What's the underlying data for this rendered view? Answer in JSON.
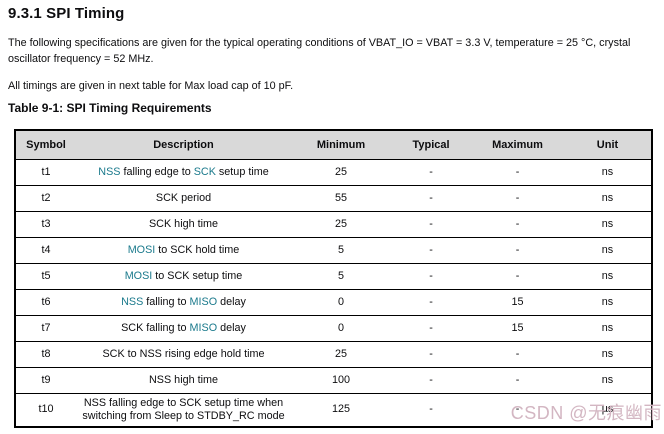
{
  "page": {
    "heading": "9.3.1 SPI Timing",
    "paragraph1": "The following specifications are given for the typical operating conditions of VBAT_IO = VBAT = 3.3 V, temperature = 25 °C, crystal oscillator frequency = 52 MHz.",
    "paragraph2": "All timings are given in next table for Max load cap of 10 pF.",
    "table_caption": "Table 9-1: SPI Timing Requirements",
    "watermark": "CSDN @无痕幽雨"
  },
  "colors": {
    "text": "#0d0d0f",
    "link_teal": "#1b7a8c",
    "header_bg": "#d9d9d9",
    "watermark_pink": "#d3b6c2",
    "border": "#000000"
  },
  "table": {
    "headers": [
      "Symbol",
      "Description",
      "Minimum",
      "Typical",
      "Maximum",
      "Unit"
    ],
    "rows": [
      {
        "symbol": "t1",
        "description": [
          {
            "text": "NSS",
            "link": true
          },
          {
            "text": " falling edge to ",
            "link": false
          },
          {
            "text": "SCK",
            "link": true
          },
          {
            "text": " setup time",
            "link": false
          }
        ],
        "minimum": "25",
        "typical": "-",
        "maximum": "-",
        "unit": "ns"
      },
      {
        "symbol": "t2",
        "description": [
          {
            "text": "SCK period",
            "link": false
          }
        ],
        "minimum": "55",
        "typical": "-",
        "maximum": "-",
        "unit": "ns"
      },
      {
        "symbol": "t3",
        "description": [
          {
            "text": "SCK high time",
            "link": false
          }
        ],
        "minimum": "25",
        "typical": "-",
        "maximum": "-",
        "unit": "ns"
      },
      {
        "symbol": "t4",
        "description": [
          {
            "text": "MOSI",
            "link": true
          },
          {
            "text": " to SCK hold time",
            "link": false
          }
        ],
        "minimum": "5",
        "typical": "-",
        "maximum": "-",
        "unit": "ns"
      },
      {
        "symbol": "t5",
        "description": [
          {
            "text": "MOSI",
            "link": true
          },
          {
            "text": " to SCK setup time",
            "link": false
          }
        ],
        "minimum": "5",
        "typical": "-",
        "maximum": "-",
        "unit": "ns"
      },
      {
        "symbol": "t6",
        "description": [
          {
            "text": "NSS",
            "link": true
          },
          {
            "text": " falling to ",
            "link": false
          },
          {
            "text": "MISO",
            "link": true
          },
          {
            "text": " delay",
            "link": false
          }
        ],
        "minimum": "0",
        "typical": "-",
        "maximum": "15",
        "unit": "ns"
      },
      {
        "symbol": "t7",
        "description": [
          {
            "text": "SCK falling to ",
            "link": false
          },
          {
            "text": "MISO",
            "link": true
          },
          {
            "text": " delay",
            "link": false
          }
        ],
        "minimum": "0",
        "typical": "-",
        "maximum": "15",
        "unit": "ns"
      },
      {
        "symbol": "t8",
        "description": [
          {
            "text": "SCK to NSS rising edge hold time",
            "link": false
          }
        ],
        "minimum": "25",
        "typical": "-",
        "maximum": "-",
        "unit": "ns"
      },
      {
        "symbol": "t9",
        "description": [
          {
            "text": "NSS high time",
            "link": false
          }
        ],
        "minimum": "100",
        "typical": "-",
        "maximum": "-",
        "unit": "ns"
      },
      {
        "symbol": "t10",
        "description": [
          {
            "text": "NSS falling edge to SCK setup time when switching from Sleep to STDBY_RC mode",
            "link": false
          }
        ],
        "minimum": "125",
        "typical": "-",
        "maximum": "-",
        "unit": "µs"
      }
    ]
  }
}
